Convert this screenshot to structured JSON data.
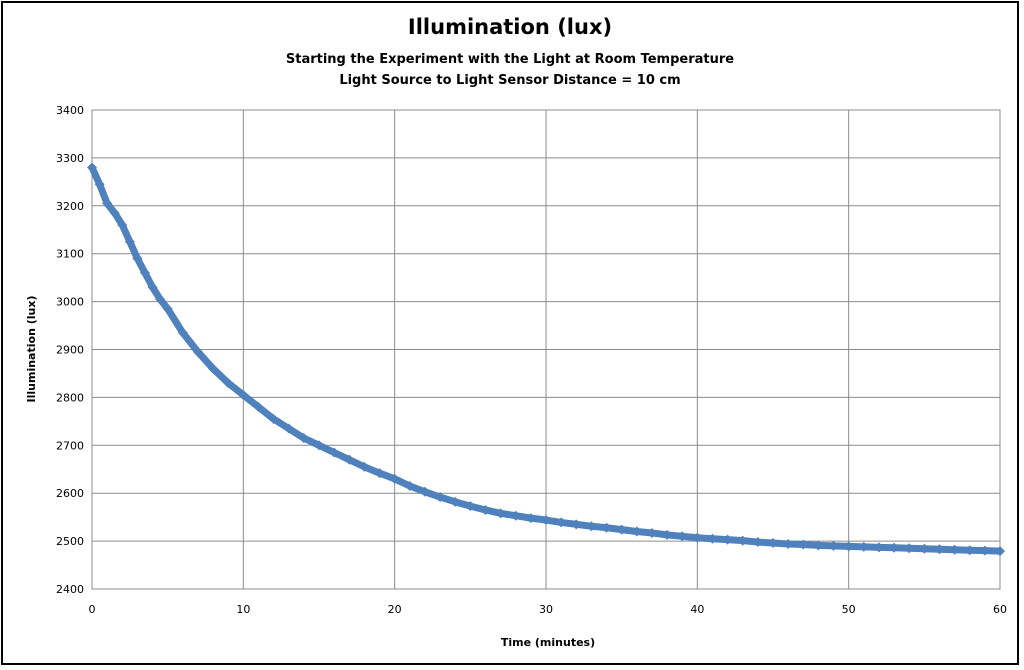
{
  "chart_data": {
    "type": "scatter",
    "title": "Illumination (lux)",
    "subtitle_lines": [
      "Starting the Experiment with the Light at Room Temperature",
      "Light Source to Light Sensor Distance = 10 cm"
    ],
    "xlabel": "Time (minutes)",
    "ylabel": "Illumination (lux)",
    "xlim": [
      0,
      60
    ],
    "ylim": [
      2400,
      3400
    ],
    "xticks": [
      0,
      10,
      20,
      30,
      40,
      50,
      60
    ],
    "yticks": [
      2400,
      2500,
      2600,
      2700,
      2800,
      2900,
      3000,
      3100,
      3200,
      3300,
      3400
    ],
    "grid": true,
    "legend": "none",
    "series": [
      {
        "color": "#4f81bd",
        "marker": "diamond",
        "x": [
          0,
          0.5,
          1,
          1.5,
          2,
          2.5,
          3,
          3.5,
          4,
          4.5,
          5,
          6,
          7,
          8,
          9,
          10,
          11,
          12,
          13,
          14,
          15,
          16,
          17,
          18,
          19,
          20,
          21,
          22,
          23,
          24,
          25,
          26,
          27,
          28,
          29,
          30,
          31,
          32,
          33,
          34,
          35,
          36,
          37,
          38,
          39,
          40,
          41,
          42,
          43,
          44,
          45,
          46,
          47,
          48,
          49,
          50,
          51,
          52,
          53,
          54,
          55,
          56,
          57,
          58,
          59,
          60
        ],
        "y": [
          3280,
          3245,
          3205,
          3185,
          3160,
          3125,
          3090,
          3060,
          3030,
          3005,
          2985,
          2935,
          2895,
          2860,
          2830,
          2805,
          2780,
          2755,
          2735,
          2715,
          2700,
          2685,
          2670,
          2655,
          2642,
          2630,
          2615,
          2603,
          2592,
          2582,
          2573,
          2565,
          2558,
          2553,
          2548,
          2544,
          2539,
          2535,
          2531,
          2528,
          2524,
          2520,
          2517,
          2513,
          2510,
          2507,
          2505,
          2503,
          2501,
          2498,
          2496,
          2494,
          2493,
          2491,
          2490,
          2489,
          2488,
          2487,
          2486,
          2485,
          2484,
          2483,
          2482,
          2481,
          2480,
          2479
        ]
      }
    ]
  }
}
